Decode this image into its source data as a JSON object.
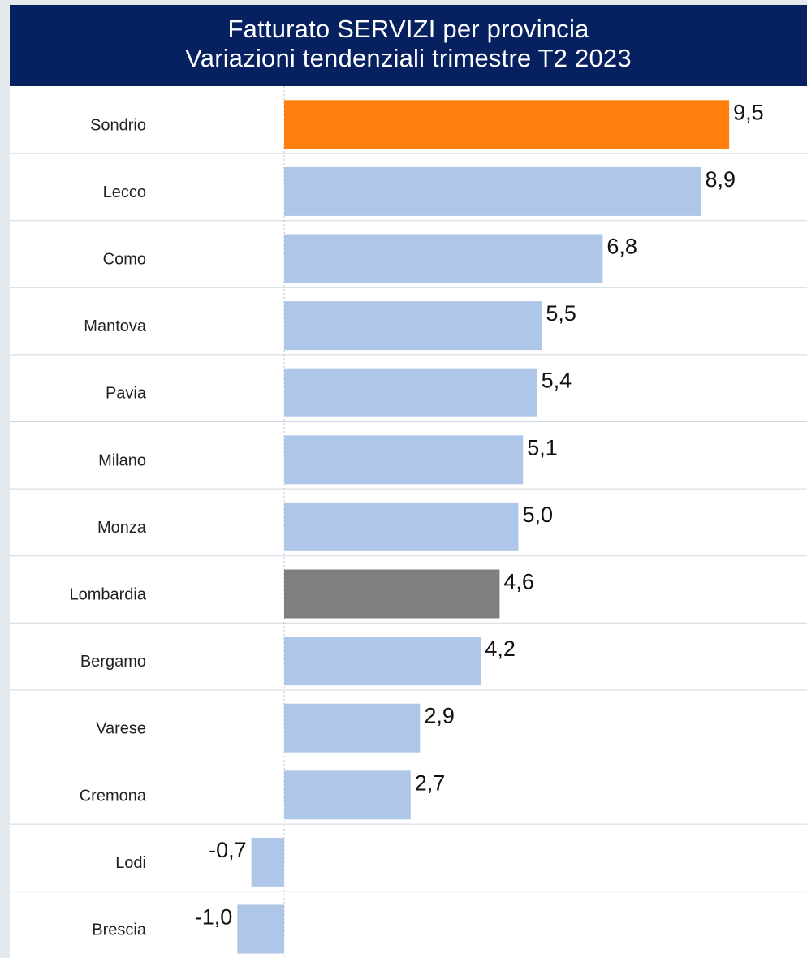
{
  "header": {
    "title_line1": "Fatturato SERVIZI per provincia",
    "title_line2": "Variazioni tendenziali trimestre T2 2023"
  },
  "chart_data": {
    "type": "bar",
    "orientation": "horizontal",
    "title": "Fatturato SERVIZI per provincia — Variazioni tendenziali trimestre T2 2023",
    "xlabel": "",
    "ylabel": "",
    "grid": true,
    "legend": "none",
    "xlim": [
      -1.5,
      10.5
    ],
    "categories": [
      "Sondrio",
      "Lecco",
      "Como",
      "Mantova",
      "Pavia",
      "Milano",
      "Monza",
      "Lombardia",
      "Bergamo",
      "Varese",
      "Cremona",
      "Lodi",
      "Brescia"
    ],
    "values": [
      9.5,
      8.9,
      6.8,
      5.5,
      5.4,
      5.1,
      5.0,
      4.6,
      4.2,
      2.9,
      2.7,
      -0.7,
      -1.0
    ],
    "value_labels": [
      "9,5",
      "8,9",
      "6,8",
      "5,5",
      "5,4",
      "5,1",
      "5,0",
      "4,6",
      "4,2",
      "2,9",
      "2,7",
      "-0,7",
      "-1,0"
    ],
    "colors": {
      "default": "#aec6e8",
      "highlight": "#ff7f0e",
      "aggregate": "#7f7f7f",
      "header_bg": "#062060",
      "grid": "#d0d7e2"
    },
    "highlight_category": "Sondrio",
    "aggregate_category": "Lombardia"
  }
}
